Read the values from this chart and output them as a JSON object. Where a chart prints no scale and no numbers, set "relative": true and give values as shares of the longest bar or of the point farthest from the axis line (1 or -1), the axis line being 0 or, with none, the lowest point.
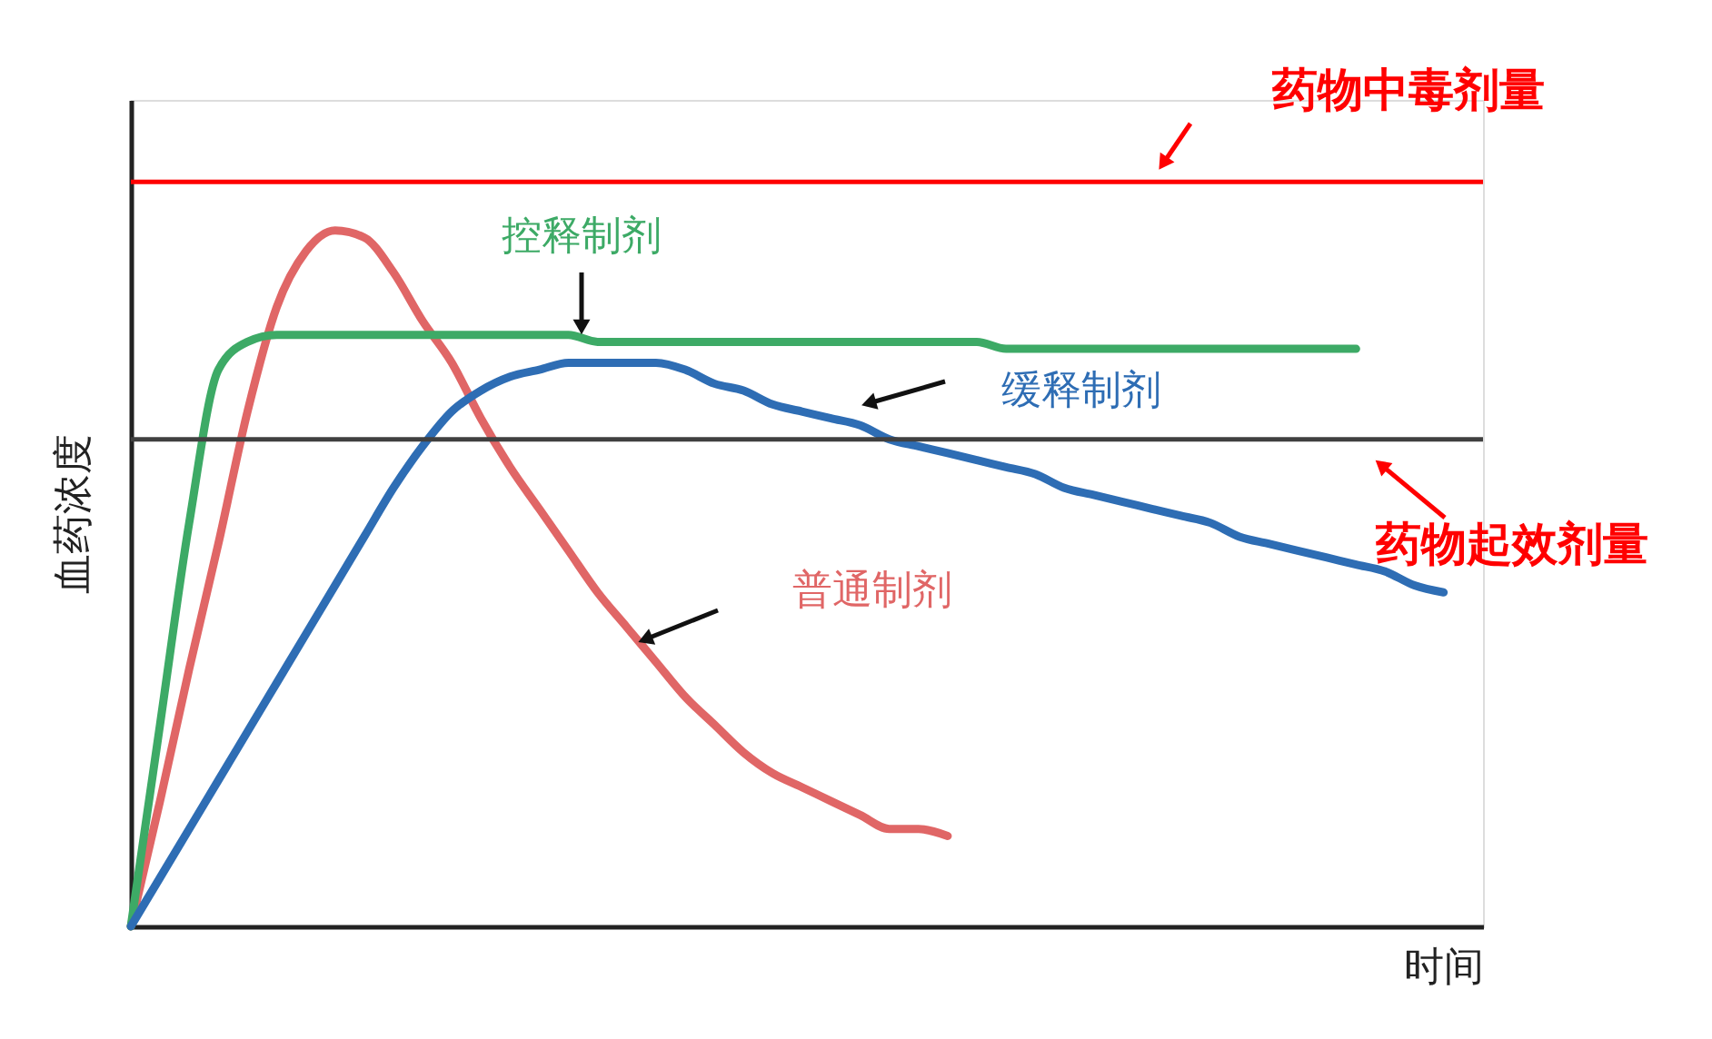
{
  "chart_data": {
    "type": "line",
    "relative": true,
    "xlabel": "时间",
    "ylabel": "血药浓度",
    "categories": [
      null,
      null,
      null,
      null,
      null,
      null,
      null,
      null,
      null,
      null,
      null,
      null,
      null,
      null,
      null,
      null,
      null,
      null,
      null,
      null,
      null,
      null,
      null,
      null,
      null,
      null,
      null,
      null,
      null,
      null,
      null,
      null,
      null,
      null,
      null,
      null,
      null,
      null,
      null,
      null,
      null,
      null,
      null,
      null,
      null,
      null
    ],
    "series": [
      {
        "name": "普通制剂",
        "color": "#e06666",
        "values": [
          0,
          0.18,
          0.37,
          0.55,
          0.74,
          0.89,
          0.97,
          1,
          0.99,
          0.94,
          0.87,
          0.81,
          0.73,
          0.66,
          0.6,
          0.54,
          0.48,
          0.43,
          0.38,
          0.33,
          0.29,
          0.25,
          0.22,
          0.2,
          0.18,
          0.16,
          0.14,
          0.14,
          0.13,
          null,
          null,
          null,
          null,
          null,
          null,
          null,
          null,
          null,
          null,
          null,
          null,
          null,
          null,
          null,
          null,
          null
        ]
      },
      {
        "name": "控释制剂",
        "color": "#3daa66",
        "values": [
          0,
          0.29,
          0.58,
          0.8,
          0.84,
          0.85,
          0.85,
          0.85,
          0.85,
          0.85,
          0.85,
          0.85,
          0.85,
          0.85,
          0.85,
          0.85,
          0.84,
          0.84,
          0.84,
          0.84,
          0.84,
          0.84,
          0.84,
          0.84,
          0.84,
          0.84,
          0.84,
          0.84,
          0.84,
          0.84,
          0.83,
          0.83,
          0.83,
          0.83,
          0.83,
          0.83,
          0.83,
          0.83,
          0.83,
          0.83,
          0.83,
          0.83,
          0.83,
          null,
          null,
          null
        ]
      },
      {
        "name": "缓释制剂",
        "color": "#2e6db4",
        "values": [
          0,
          0.07,
          0.14,
          0.21,
          0.28,
          0.35,
          0.42,
          0.49,
          0.56,
          0.63,
          0.69,
          0.74,
          0.77,
          0.79,
          0.8,
          0.81,
          0.81,
          0.81,
          0.81,
          0.8,
          0.78,
          0.77,
          0.75,
          0.74,
          0.73,
          0.72,
          0.7,
          0.69,
          0.68,
          0.67,
          0.66,
          0.65,
          0.63,
          0.62,
          0.61,
          0.6,
          0.59,
          0.58,
          0.56,
          0.55,
          0.54,
          0.53,
          0.52,
          0.51,
          0.49,
          0.48
        ]
      }
    ],
    "ref_lines": [
      {
        "axis": "y",
        "value": 1.07,
        "label": "药物中毒剂量",
        "color": "#ff0000"
      },
      {
        "axis": "y",
        "value": 0.7,
        "label": "药物起效剂量",
        "color": "#404040"
      }
    ],
    "grid": false,
    "legend": false,
    "line_style": "solid"
  }
}
